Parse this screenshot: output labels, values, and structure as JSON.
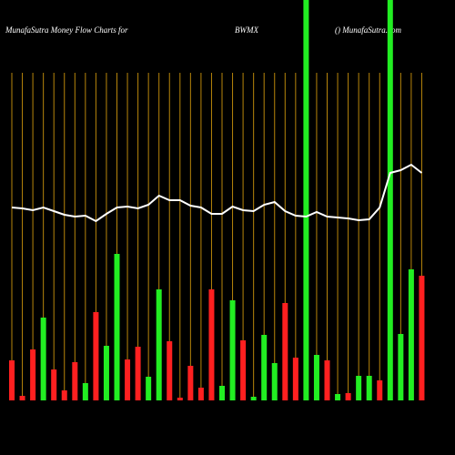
{
  "chart_data": {
    "type": "bar",
    "title": "MunafaSutra  Money Flow  Charts for",
    "ticker": "BWMX",
    "source": "() MunafaSutra.com",
    "categories": [
      null,
      null,
      null,
      null,
      null,
      null,
      null,
      null,
      null,
      null,
      null,
      null,
      null,
      null,
      null,
      null,
      null,
      null,
      null,
      null,
      null,
      null,
      null,
      null,
      null,
      null,
      null,
      null,
      null,
      null,
      null,
      null,
      null,
      null,
      null,
      null,
      null,
      null,
      null,
      null
    ],
    "values": [
      44,
      5,
      56,
      91,
      34,
      11,
      42,
      19,
      97,
      60,
      161,
      45,
      59,
      26,
      122,
      65,
      3,
      38,
      14,
      122,
      16,
      110,
      66,
      4,
      72,
      41,
      107,
      47,
      440,
      50,
      44,
      7,
      8,
      27,
      27,
      22,
      440,
      73,
      144,
      137
    ],
    "colors": [
      "#ff2020",
      "#ff2020",
      "#ff2020",
      "#22ee22",
      "#ff2020",
      "#ff2020",
      "#ff2020",
      "#22ee22",
      "#ff2020",
      "#22ee22",
      "#22ee22",
      "#ff2020",
      "#ff2020",
      "#22ee22",
      "#22ee22",
      "#ff2020",
      "#ff2020",
      "#ff2020",
      "#ff2020",
      "#ff2020",
      "#22ee22",
      "#22ee22",
      "#ff2020",
      "#22ee22",
      "#22ee22",
      "#22ee22",
      "#ff2020",
      "#ff2020",
      "#22ee22",
      "#22ee22",
      "#ff2020",
      "#22ee22",
      "#ff2020",
      "#22ee22",
      "#22ee22",
      "#ff2020",
      "#22ee22",
      "#22ee22",
      "#22ee22",
      "#ff2020"
    ],
    "line": {
      "color": "#ffffff",
      "values": [
        212,
        211,
        209,
        212,
        208,
        204,
        202,
        203,
        197,
        205,
        212,
        213,
        211,
        215,
        225,
        220,
        220,
        214,
        212,
        205,
        205,
        213,
        209,
        208,
        215,
        218,
        208,
        203,
        202,
        207,
        202,
        201,
        200,
        198,
        199,
        212,
        250,
        253,
        259,
        250
      ]
    },
    "ylim": [
      0,
      440
    ],
    "gridline_color": "#b8860b"
  }
}
